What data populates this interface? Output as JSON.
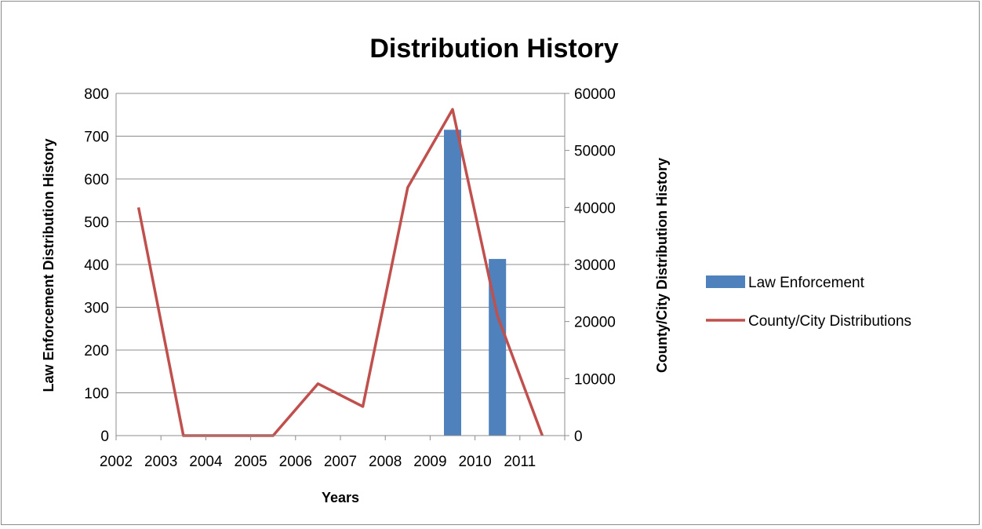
{
  "chart_data": {
    "type": "bar+line",
    "title": "Distribution History",
    "xlabel": "Years",
    "ylabel_left": "Law Enforcement Distribution History",
    "ylabel_right": "County/City Distribution History",
    "categories": [
      "2002",
      "2003",
      "2004",
      "2005",
      "2006",
      "2007",
      "2008",
      "2009",
      "2010",
      "2011"
    ],
    "y_left_ticks": [
      "0",
      "100",
      "200",
      "300",
      "400",
      "500",
      "600",
      "700",
      "800"
    ],
    "y_right_ticks": [
      "0",
      "10000",
      "20000",
      "30000",
      "40000",
      "50000",
      "60000"
    ],
    "ylim_left": [
      0,
      800
    ],
    "ylim_right": [
      0,
      60000
    ],
    "grid": true,
    "legend_position": "right",
    "series": [
      {
        "name": "Law Enforcement",
        "kind": "bar",
        "axis": "left",
        "color": "#4f81bd",
        "values": [
          0,
          0,
          0,
          0,
          0,
          0,
          0,
          715,
          413,
          0
        ]
      },
      {
        "name": "County/City Distributions",
        "kind": "line",
        "axis": "right",
        "color": "#c0504d",
        "values": [
          40000,
          0,
          0,
          0,
          9100,
          5100,
          43500,
          57200,
          21000,
          0
        ]
      }
    ]
  }
}
